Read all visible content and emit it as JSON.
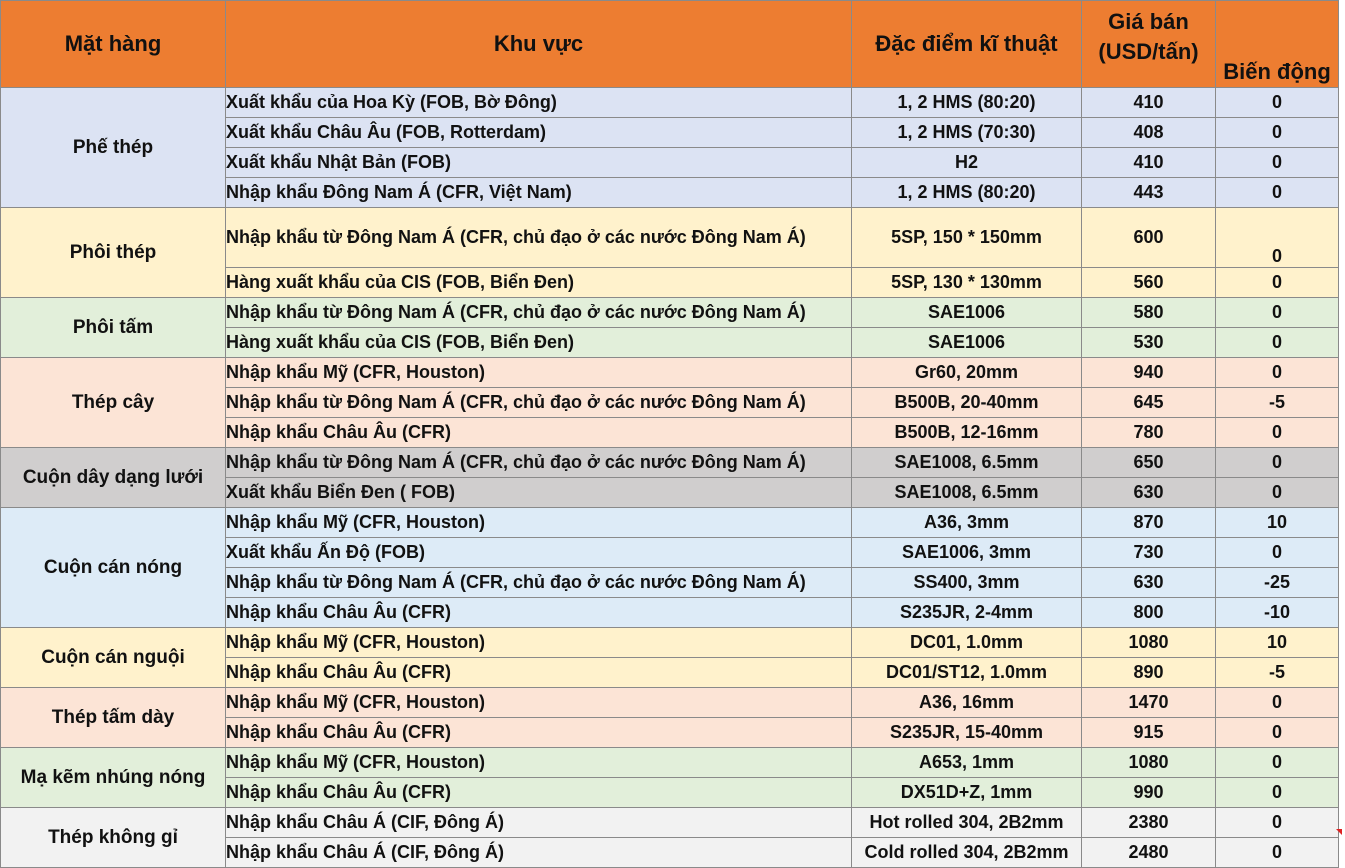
{
  "headers": {
    "product": "Mặt hàng",
    "region": "Khu vực",
    "spec": "Đặc điểm kĩ thuật",
    "price_line1": "Giá bán",
    "price_line2": "(USD/tấn)",
    "change": "Biến động"
  },
  "groups": [
    {
      "product": "Phế thép",
      "color": "#DCE3F3",
      "rows": [
        {
          "region": "Xuất khẩu của Hoa Kỳ (FOB, Bờ Đông)",
          "spec": "1, 2 HMS (80:20)",
          "price": "410",
          "change": "0"
        },
        {
          "region": "Xuất khẩu Châu Âu (FOB, Rotterdam)",
          "spec": "1, 2 HMS (70:30)",
          "price": "408",
          "change": "0"
        },
        {
          "region": "Xuất khẩu Nhật Bản (FOB)",
          "spec": "H2",
          "price": "410",
          "change": "0"
        },
        {
          "region": "Nhập khẩu Đông Nam Á (CFR, Việt Nam)",
          "spec": "1, 2 HMS (80:20)",
          "price": "443",
          "change": "0"
        }
      ]
    },
    {
      "product": "Phôi thép",
      "color": "#FFF2CC",
      "rows": [
        {
          "region": "Nhập khẩu từ Đông Nam Á (CFR, chủ đạo ở các nước Đông Nam Á)",
          "spec": "5SP, 150 * 150mm",
          "price": "600",
          "change": "0"
        },
        {
          "region": "Hàng xuất khẩu của CIS (FOB, Biển Đen)",
          "spec": "5SP, 130 * 130mm",
          "price": "560",
          "change": "0"
        }
      ]
    },
    {
      "product": "Phôi tấm",
      "color": "#E2EFDA",
      "rows": [
        {
          "region": "Nhập khẩu từ Đông Nam Á (CFR, chủ đạo ở các nước Đông Nam Á)",
          "spec": "SAE1006",
          "price": "580",
          "change": "0"
        },
        {
          "region": "Hàng xuất khẩu của CIS (FOB, Biển Đen)",
          "spec": "SAE1006",
          "price": "530",
          "change": "0"
        }
      ]
    },
    {
      "product": "Thép cây",
      "color": "#FCE4D6",
      "rows": [
        {
          "region": "Nhập khẩu Mỹ (CFR, Houston)",
          "spec": "Gr60, 20mm",
          "price": "940",
          "change": "0"
        },
        {
          "region": "Nhập khẩu từ Đông Nam Á (CFR, chủ đạo ở các nước Đông Nam Á)",
          "spec": "B500B, 20-40mm",
          "price": "645",
          "change": "-5"
        },
        {
          "region": "Nhập khẩu Châu Âu (CFR)",
          "spec": "B500B, 12-16mm",
          "price": "780",
          "change": "0"
        }
      ]
    },
    {
      "product": "Cuộn dây dạng lưới",
      "color": "#D0CECE",
      "rows": [
        {
          "region": "Nhập khẩu từ Đông Nam Á (CFR, chủ đạo ở các nước Đông Nam Á)",
          "spec": "SAE1008, 6.5mm",
          "price": "650",
          "change": "0"
        },
        {
          "region": "Xuất khẩu Biển Đen ( FOB)",
          "spec": "SAE1008, 6.5mm",
          "price": "630",
          "change": "0"
        }
      ]
    },
    {
      "product": "Cuộn cán nóng",
      "color": "#DDEBF7",
      "rows": [
        {
          "region": "Nhập khẩu Mỹ (CFR, Houston)",
          "spec": "A36, 3mm",
          "price": "870",
          "change": "10"
        },
        {
          "region": "Xuất khẩu Ấn Độ (FOB)",
          "spec": "SAE1006, 3mm",
          "price": "730",
          "change": "0"
        },
        {
          "region": "Nhập khẩu từ Đông Nam Á (CFR, chủ đạo ở các nước Đông Nam Á)",
          "spec": "SS400, 3mm",
          "price": "630",
          "change": "-25"
        },
        {
          "region": "Nhập khẩu Châu Âu (CFR)",
          "spec": "S235JR, 2-4mm",
          "price": "800",
          "change": "-10"
        }
      ]
    },
    {
      "product": "Cuộn cán nguội",
      "color": "#FFF2CC",
      "rows": [
        {
          "region": "Nhập khẩu Mỹ (CFR, Houston)",
          "spec": "DC01, 1.0mm",
          "price": "1080",
          "change": "10"
        },
        {
          "region": "Nhập khẩu Châu Âu (CFR)",
          "spec": "DC01/ST12, 1.0mm",
          "price": "890",
          "change": "-5"
        }
      ]
    },
    {
      "product": "Thép tấm dày",
      "color": "#FCE4D6",
      "rows": [
        {
          "region": "Nhập khẩu Mỹ (CFR, Houston)",
          "spec": "A36, 16mm",
          "price": "1470",
          "change": "0"
        },
        {
          "region": "Nhập khẩu Châu Âu (CFR)",
          "spec": "S235JR, 15-40mm",
          "price": "915",
          "change": "0"
        }
      ]
    },
    {
      "product": "Mạ kẽm nhúng nóng",
      "color": "#E2EFDA",
      "rows": [
        {
          "region": "Nhập khẩu Mỹ (CFR, Houston)",
          "spec": "A653, 1mm",
          "price": "1080",
          "change": "0"
        },
        {
          "region": "Nhập khẩu Châu Âu (CFR)",
          "spec": "DX51D+Z, 1mm",
          "price": "990",
          "change": "0"
        }
      ]
    },
    {
      "product": "Thép không gỉ",
      "color": "#F2F2F2",
      "rows": [
        {
          "region": "Nhập khẩu Châu Á (CIF, Đông Á)",
          "spec": "Hot rolled 304, 2B2mm",
          "price": "2380",
          "change": "0"
        },
        {
          "region": "Nhập khẩu Châu Á (CIF, Đông Á)",
          "spec": "Cold rolled 304, 2B2mm",
          "price": "2480",
          "change": "0"
        }
      ]
    }
  ]
}
